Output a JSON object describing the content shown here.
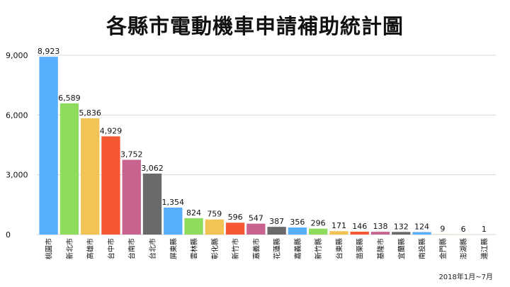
{
  "title": "各縣市電動機車申請補助統計圖",
  "note": "2018年1月~7月",
  "chart_data": {
    "type": "bar",
    "title": "各縣市電動機車申請補助統計圖",
    "xlabel": "",
    "ylabel": "",
    "ylim": [
      0,
      9000
    ],
    "yticks": [
      0,
      3000,
      6000,
      9000
    ],
    "ytick_labels": [
      "0",
      "3,000",
      "6,000",
      "9,000"
    ],
    "grid": true,
    "categories": [
      "桃園市",
      "新北市",
      "高雄市",
      "台中市",
      "台南市",
      "台北市",
      "屏東縣",
      "雲林縣",
      "彰化縣",
      "新竹市",
      "嘉義市",
      "花蓮縣",
      "嘉義縣",
      "新竹縣",
      "台東縣",
      "苗栗縣",
      "基隆市",
      "宜蘭縣",
      "南投縣",
      "金門縣",
      "澎湖縣",
      "連江縣"
    ],
    "values": [
      8923,
      6589,
      5836,
      4929,
      3752,
      3062,
      1354,
      824,
      759,
      596,
      547,
      387,
      356,
      296,
      171,
      146,
      138,
      132,
      124,
      9,
      6,
      1
    ],
    "value_labels": [
      "8,923",
      "6,589",
      "5,836",
      "4,929",
      "3,752",
      "3,062",
      "1,354",
      "824",
      "759",
      "596",
      "547",
      "387",
      "356",
      "296",
      "171",
      "146",
      "138",
      "132",
      "124",
      "9",
      "6",
      "1"
    ],
    "colors": [
      "#57aefc",
      "#8fdb5d",
      "#f2c455",
      "#f55735",
      "#c8628f",
      "#6a6a6a",
      "#57aefc",
      "#8fdb5d",
      "#f2c455",
      "#f55735",
      "#c8628f",
      "#6a6a6a",
      "#57aefc",
      "#8fdb5d",
      "#f2c455",
      "#f55735",
      "#c8628f",
      "#6a6a6a",
      "#57aefc",
      "#8fdb5d",
      "#f2c455",
      "#f55735"
    ]
  }
}
